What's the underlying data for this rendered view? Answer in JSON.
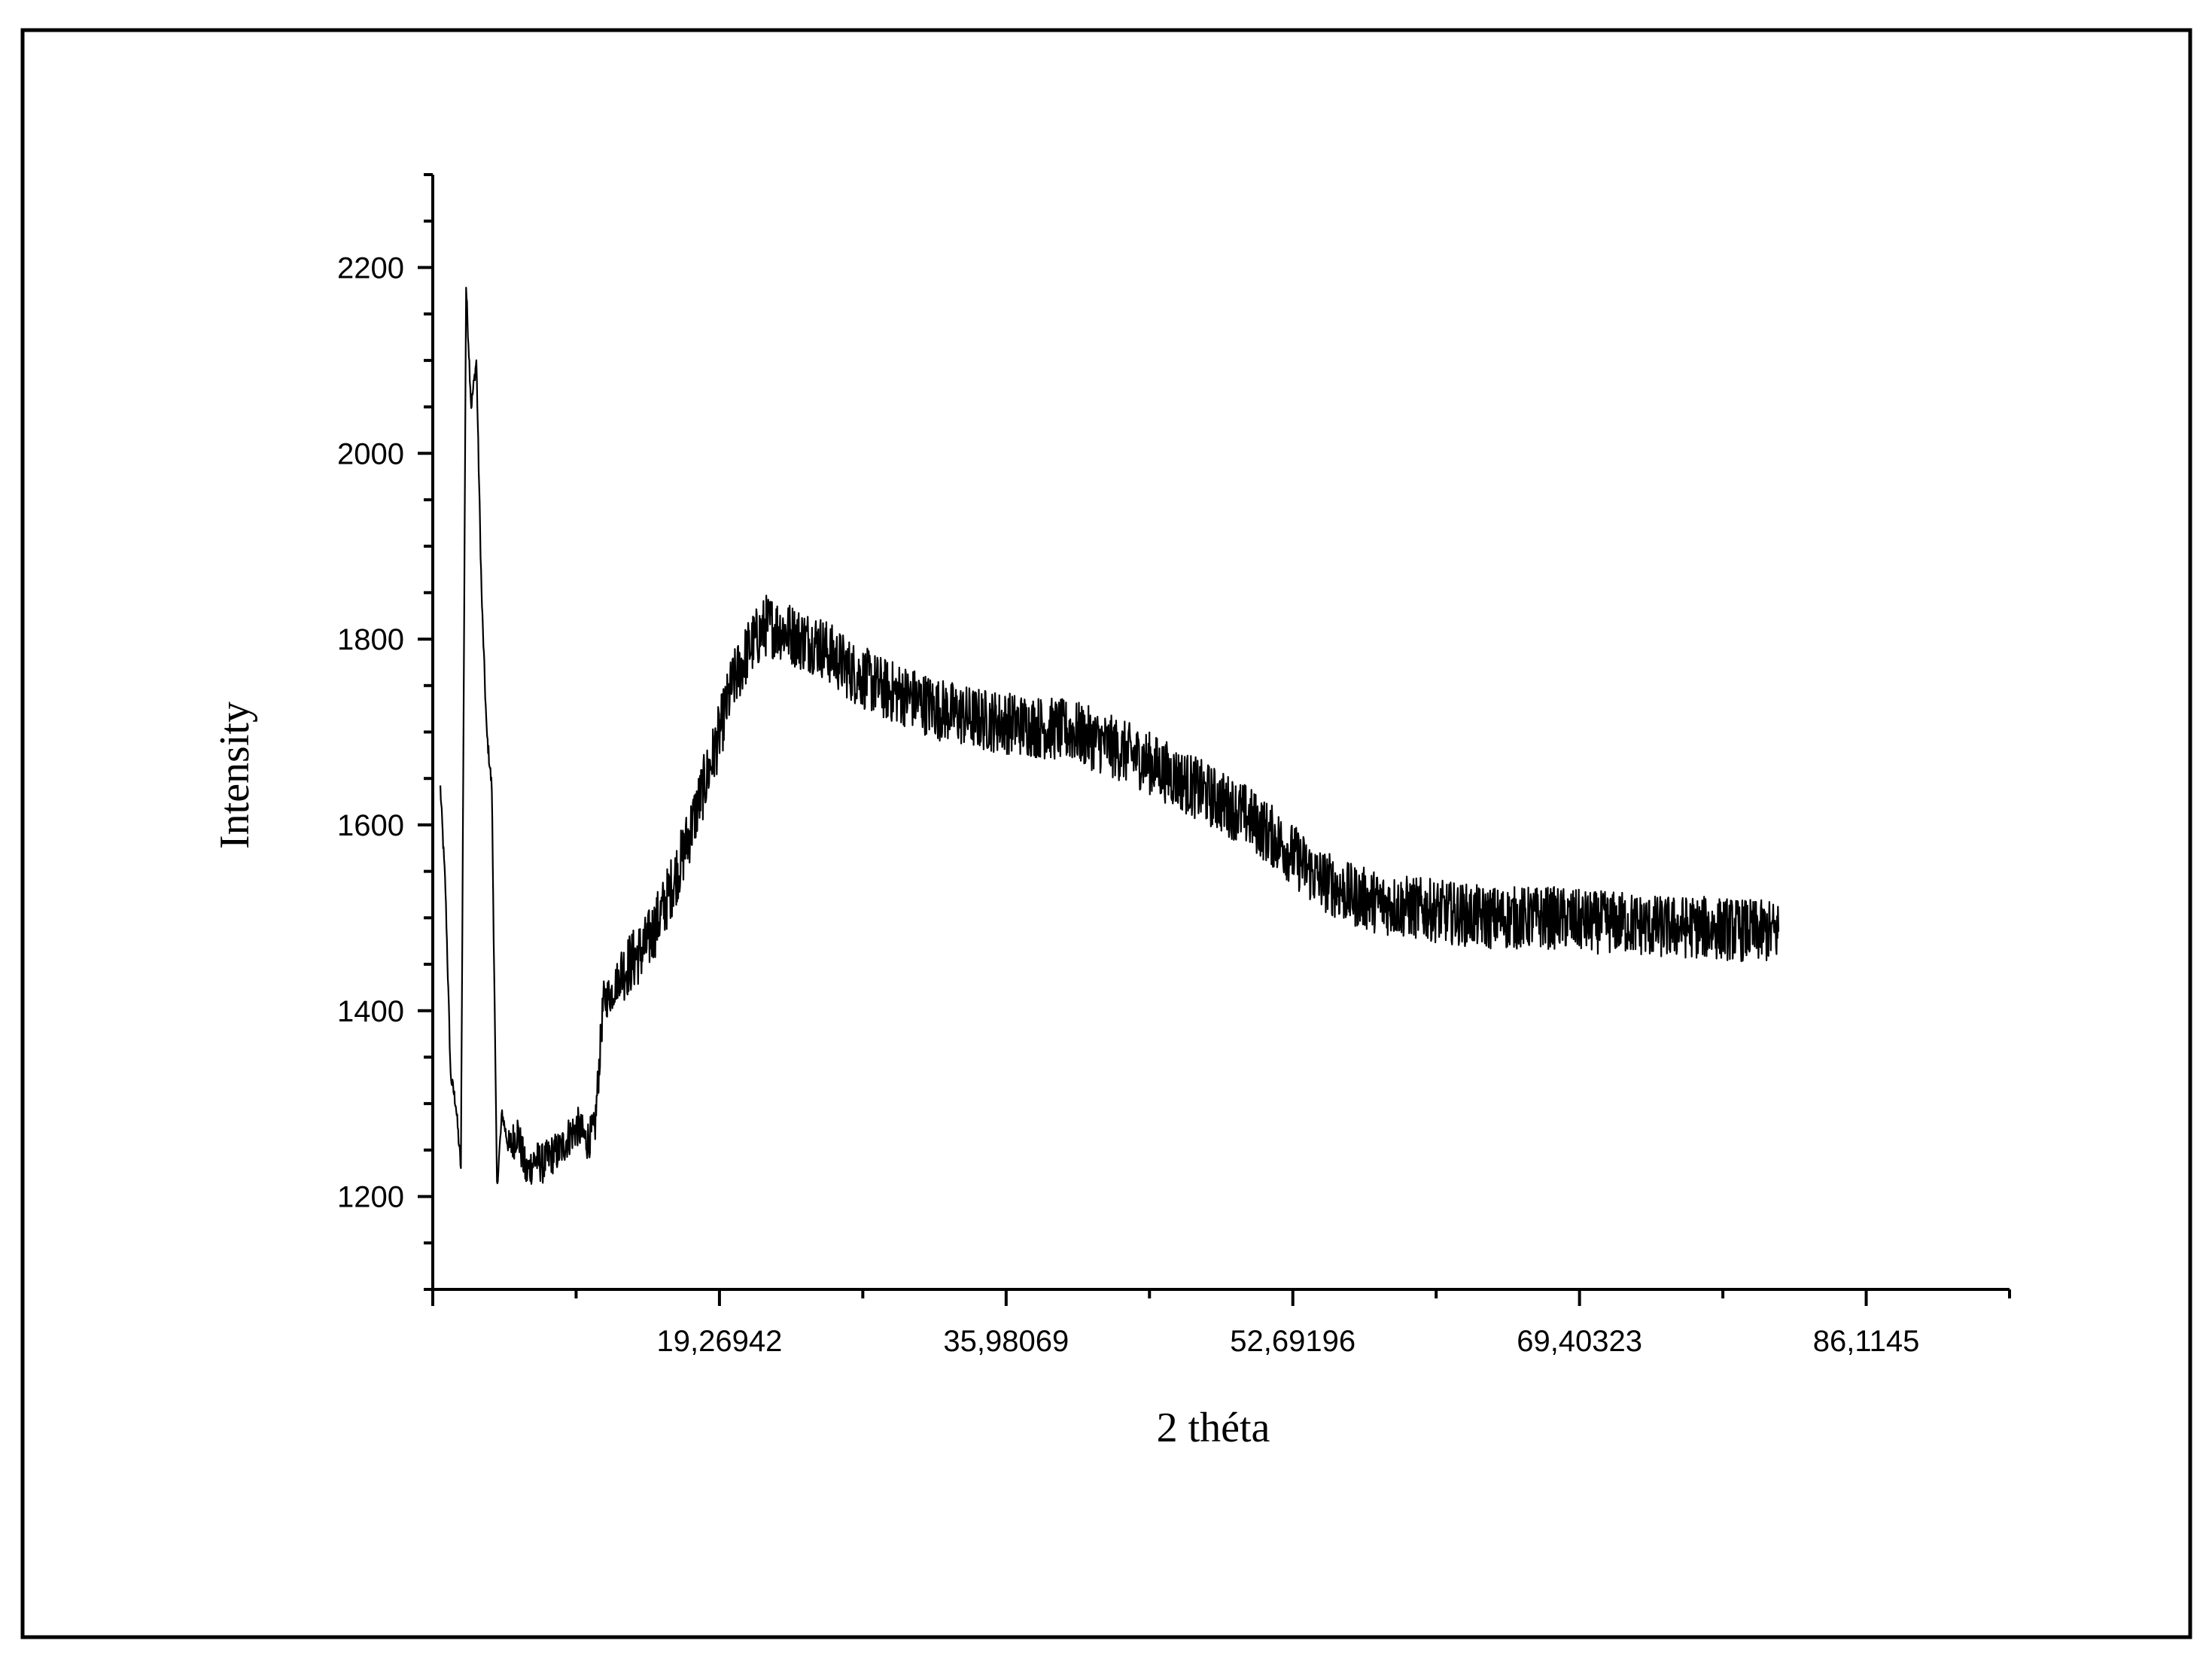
{
  "chart_data": {
    "type": "line",
    "title": "",
    "xlabel": "2 théta",
    "ylabel": "Intensity",
    "xlim": [
      2.55815,
      94.47
    ],
    "ylim": [
      1100,
      2300
    ],
    "grid": false,
    "legend": "none",
    "x_ticks": [
      19.26942,
      35.98069,
      52.69196,
      69.40323,
      86.1145
    ],
    "x_tick_labels": [
      "19,26942",
      "35,98069",
      "52,69196",
      "69,40323",
      "86,1145"
    ],
    "y_ticks": [
      1200,
      1400,
      1600,
      1800,
      2000,
      2200
    ],
    "y_tick_labels": [
      "1200",
      "1400",
      "1600",
      "1800",
      "2000",
      "2200"
    ],
    "line_color": "#000000",
    "frame_color": "#000000",
    "series": [
      {
        "x": [
          3.0,
          3.3,
          3.6,
          3.9,
          4.2,
          4.5,
          4.8,
          5.1,
          5.4,
          5.7,
          6.0,
          6.3,
          6.6,
          7.0,
          7.5,
          8.0,
          8.5,
          9.0,
          9.5,
          10.0,
          10.5,
          11.0,
          11.5,
          12.0,
          12.5,
          13.0,
          13.5,
          14.0,
          15.0,
          16.0,
          17.0,
          18.0,
          19.0,
          20.0,
          21.0,
          22.0,
          23.0,
          24.0,
          25.0,
          26.0,
          27.0,
          28.0,
          29.0,
          30.0,
          32.0,
          34.0,
          36.0,
          38.0,
          40.0,
          42.0,
          44.0,
          46.0,
          48.0,
          50.0,
          52.0,
          54.0,
          56.0,
          58.0,
          60.0,
          62.0,
          64.0,
          66.0,
          68.0,
          70.0,
          72.0,
          74.0,
          76.0,
          78.0,
          80.0,
          81.0
        ],
        "y": [
          1640,
          1530,
          1330,
          1300,
          1230,
          2180,
          2050,
          2100,
          1850,
          1700,
          1640,
          1210,
          1290,
          1250,
          1270,
          1225,
          1240,
          1235,
          1245,
          1250,
          1265,
          1275,
          1260,
          1270,
          1410,
          1420,
          1440,
          1450,
          1470,
          1510,
          1560,
          1620,
          1680,
          1750,
          1790,
          1815,
          1810,
          1800,
          1795,
          1780,
          1765,
          1755,
          1745,
          1740,
          1725,
          1715,
          1710,
          1705,
          1700,
          1685,
          1670,
          1650,
          1630,
          1610,
          1580,
          1545,
          1525,
          1515,
          1510,
          1505,
          1500,
          1500,
          1500,
          1495,
          1495,
          1490,
          1490,
          1488,
          1485,
          1485
        ]
      }
    ]
  }
}
